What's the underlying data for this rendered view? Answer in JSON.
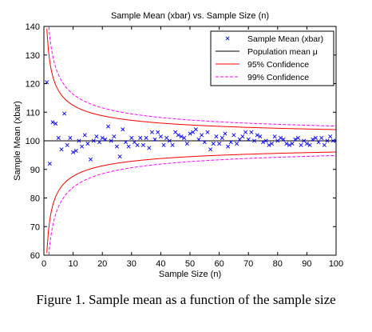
{
  "chart_data": {
    "type": "scatter",
    "title": "Sample Mean (xbar) vs. Sample Size (n)",
    "xlabel": "Sample Size (n)",
    "ylabel": "Sample Mean (xbar)",
    "xlim": [
      0,
      100
    ],
    "ylim": [
      60,
      140
    ],
    "xticks": [
      0,
      10,
      20,
      30,
      40,
      50,
      60,
      70,
      80,
      90,
      100
    ],
    "yticks": [
      60,
      70,
      80,
      90,
      100,
      110,
      120,
      130,
      140
    ],
    "grid": false,
    "legend_position": "top-right",
    "population_mean": 100,
    "sigma": 20,
    "z95": 1.96,
    "z99": 2.576,
    "series": [
      {
        "name": "Sample Mean (xbar)",
        "kind": "scatter",
        "marker": "x",
        "color": "#0000ff",
        "x": [
          1,
          2,
          3,
          4,
          5,
          6,
          7,
          8,
          9,
          10,
          11,
          12,
          13,
          14,
          15,
          16,
          17,
          18,
          19,
          20,
          21,
          22,
          23,
          24,
          25,
          26,
          27,
          28,
          29,
          30,
          31,
          32,
          33,
          34,
          35,
          36,
          37,
          38,
          39,
          40,
          41,
          42,
          43,
          44,
          45,
          46,
          47,
          48,
          49,
          50,
          51,
          52,
          53,
          54,
          55,
          56,
          57,
          58,
          59,
          60,
          61,
          62,
          63,
          64,
          65,
          66,
          67,
          68,
          69,
          70,
          71,
          72,
          73,
          74,
          75,
          76,
          77,
          78,
          79,
          80,
          81,
          82,
          83,
          84,
          85,
          86,
          87,
          88,
          89,
          90,
          91,
          92,
          93,
          94,
          95,
          96,
          97,
          98,
          99,
          100
        ],
        "y": [
          120.5,
          92,
          106.5,
          106,
          101,
          97,
          109.5,
          98.5,
          101,
          96,
          96.5,
          100,
          98,
          102,
          99,
          93.5,
          100,
          101.5,
          99.5,
          101,
          100.5,
          105,
          100,
          101.5,
          98,
          94.5,
          104,
          99.5,
          98,
          101,
          99.5,
          98.5,
          101,
          98.5,
          101,
          97.5,
          103,
          100.5,
          103,
          101.5,
          98.5,
          101,
          100,
          98.5,
          103,
          102,
          101.5,
          101,
          99,
          102.5,
          103,
          104,
          100.5,
          102,
          99.5,
          103,
          97,
          99,
          101.5,
          99,
          101,
          102.5,
          98,
          99.5,
          102,
          99,
          100.5,
          101.5,
          103,
          100.5,
          103,
          100,
          102,
          101.5,
          99.5,
          100,
          98.5,
          99,
          101.5,
          100,
          101,
          100.5,
          99,
          98.5,
          99,
          100.5,
          101,
          98.5,
          100,
          99,
          98.5,
          100.5,
          101,
          99.5,
          101,
          98.5,
          100,
          101.5,
          100,
          100
        ]
      },
      {
        "name": "Population mean μ",
        "kind": "hline",
        "color": "#000000"
      },
      {
        "name": "95% Confidence",
        "kind": "band",
        "color": "#ff0000"
      },
      {
        "name": "99% Confidence",
        "kind": "band",
        "color": "#ff00ff"
      }
    ]
  },
  "caption": "Figure 1. Sample mean as a function of the sample size"
}
